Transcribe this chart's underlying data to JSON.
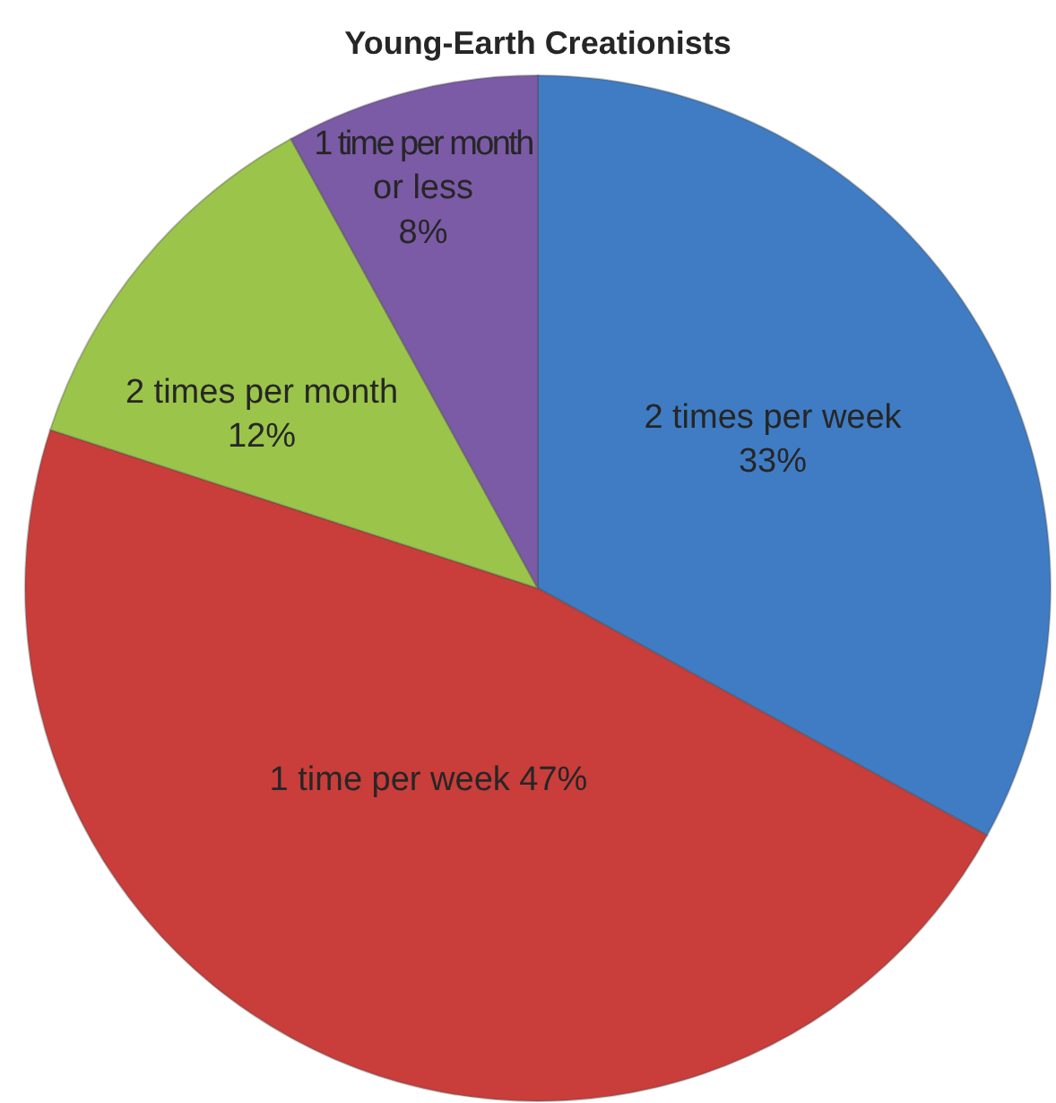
{
  "chart_data": {
    "type": "pie",
    "title": "Young-Earth Creationists",
    "categories": [
      "2 times per week",
      "1 time per week",
      "2 times per month",
      "1 time per month or less"
    ],
    "values": [
      33,
      47,
      12,
      8
    ],
    "colors": [
      "#3f7cc4",
      "#c93d3a",
      "#9bc44a",
      "#7b5aa6"
    ],
    "value_labels": [
      "33%",
      "47%",
      "12%",
      "8%"
    ]
  }
}
